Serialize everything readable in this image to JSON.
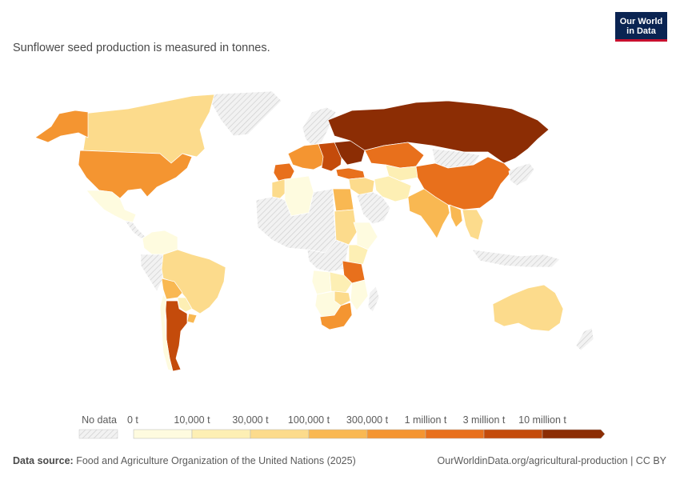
{
  "subtitle": "Sunflower seed production is measured in tonnes.",
  "logo": {
    "line1": "Our World",
    "line2": "in Data"
  },
  "legend": {
    "no_data_label": "No data",
    "bins": [
      {
        "label": "0 t",
        "color": "#fefbdf"
      },
      {
        "label": "10,000 t",
        "color": "#fdefb4"
      },
      {
        "label": "30,000 t",
        "color": "#fcdb8c"
      },
      {
        "label": "100,000 t",
        "color": "#f9b852"
      },
      {
        "label": "300,000 t",
        "color": "#f49531"
      },
      {
        "label": "1 million t",
        "color": "#e8701c"
      },
      {
        "label": "3 million t",
        "color": "#c44b0b"
      },
      {
        "label": "10 million t",
        "color": "#8c2d04"
      }
    ]
  },
  "footer": {
    "source_label": "Data source:",
    "source_text": "Food and Agriculture Organization of the United Nations (2025)",
    "url": "OurWorldinData.org/agricultural-production | CC BY"
  },
  "map_regions": [
    {
      "name": "canada",
      "color": "#fcdb8c"
    },
    {
      "name": "alaska",
      "color": "#f49531"
    },
    {
      "name": "greenland",
      "color": "nodata"
    },
    {
      "name": "usa",
      "color": "#f49531"
    },
    {
      "name": "mexico",
      "color": "#fefbdf"
    },
    {
      "name": "central-america",
      "color": "nodata"
    },
    {
      "name": "colombia-venezuela",
      "color": "#fefbdf"
    },
    {
      "name": "brazil",
      "color": "#fcdb8c"
    },
    {
      "name": "bolivia",
      "color": "#f9b852"
    },
    {
      "name": "paraguay",
      "color": "#fdefb4"
    },
    {
      "name": "uruguay",
      "color": "#f9b852"
    },
    {
      "name": "argentina",
      "color": "#c44b0b"
    },
    {
      "name": "chile",
      "color": "#fefbdf"
    },
    {
      "name": "peru-ecuador",
      "color": "nodata"
    },
    {
      "name": "western-europe",
      "color": "#f49531"
    },
    {
      "name": "iberia",
      "color": "#e8701c"
    },
    {
      "name": "scandinavia",
      "color": "nodata"
    },
    {
      "name": "eastern-europe",
      "color": "#c44b0b"
    },
    {
      "name": "ukraine",
      "color": "#8c2d04"
    },
    {
      "name": "russia",
      "color": "#8c2d04"
    },
    {
      "name": "turkey",
      "color": "#e8701c"
    },
    {
      "name": "kazakhstan",
      "color": "#e8701c"
    },
    {
      "name": "middle-east",
      "color": "#fcdb8c"
    },
    {
      "name": "arabia",
      "color": "nodata"
    },
    {
      "name": "iran-afgh",
      "color": "#fdefb4"
    },
    {
      "name": "central-asia",
      "color": "#fdefb4"
    },
    {
      "name": "mongolia",
      "color": "nodata"
    },
    {
      "name": "china",
      "color": "#e8701c"
    },
    {
      "name": "india",
      "color": "#f9b852"
    },
    {
      "name": "myanmar",
      "color": "#f9b852"
    },
    {
      "name": "southeast-asia",
      "color": "#fcdb8c"
    },
    {
      "name": "indonesia",
      "color": "nodata"
    },
    {
      "name": "japan-korea",
      "color": "nodata"
    },
    {
      "name": "north-africa",
      "color": "#fefbdf"
    },
    {
      "name": "morocco",
      "color": "#fcdb8c"
    },
    {
      "name": "sahara",
      "color": "nodata"
    },
    {
      "name": "sudan",
      "color": "#f9b852"
    },
    {
      "name": "sudan-south",
      "color": "#fcdb8c"
    },
    {
      "name": "ethiopia",
      "color": "#fefbdf"
    },
    {
      "name": "central-africa",
      "color": "nodata"
    },
    {
      "name": "east-africa",
      "color": "#fdefb4"
    },
    {
      "name": "tanzania",
      "color": "#e8701c"
    },
    {
      "name": "angola",
      "color": "#fefbdf"
    },
    {
      "name": "zambia",
      "color": "#fdefb4"
    },
    {
      "name": "mozambique",
      "color": "#fefbdf"
    },
    {
      "name": "zimbabwe",
      "color": "#fcdb8c"
    },
    {
      "name": "botswana-namibia",
      "color": "#fefbdf"
    },
    {
      "name": "south-africa",
      "color": "#f49531"
    },
    {
      "name": "madagascar",
      "color": "nodata"
    },
    {
      "name": "australia",
      "color": "#fcdb8c"
    },
    {
      "name": "new-zealand",
      "color": "nodata"
    }
  ]
}
